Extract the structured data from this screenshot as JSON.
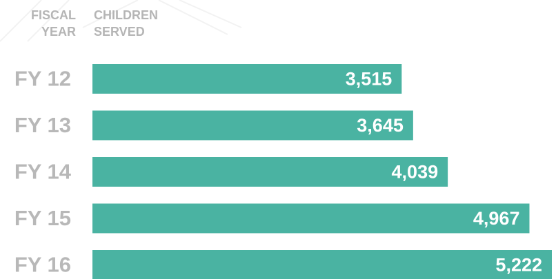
{
  "chart_data": {
    "type": "bar",
    "orientation": "horizontal",
    "y_label": "FISCAL YEAR",
    "x_label": "CHILDREN SERVED",
    "categories": [
      "FY 12",
      "FY 13",
      "FY 14",
      "FY 15",
      "FY 16"
    ],
    "values": [
      3515,
      3645,
      4039,
      4967,
      5222
    ],
    "value_labels": [
      "3,515",
      "3,645",
      "4,039",
      "4,967",
      "5,222"
    ],
    "color": "#4ab3a2"
  }
}
